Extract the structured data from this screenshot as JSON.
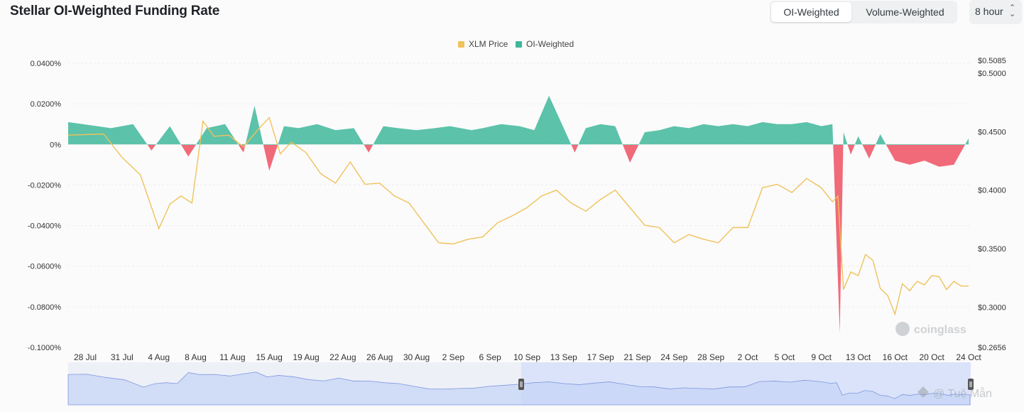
{
  "header": {
    "title": "Stellar OI-Weighted Funding Rate",
    "toggle": {
      "options": [
        "OI-Weighted",
        "Volume-Weighted"
      ],
      "selected": "OI-Weighted"
    },
    "interval": {
      "value": "8 hour"
    }
  },
  "watermark": {
    "brand": "coinglass",
    "credit": "@ Tuệ Mẫn"
  },
  "colors": {
    "price": "#f0c25a",
    "positive": "#3fb79b",
    "negative": "#ef5a6a",
    "navigator": "#c5d3f5"
  },
  "chart_data": {
    "type": "area",
    "legend": [
      "XLM Price",
      "OI-Weighted"
    ],
    "legend_position": "top-center",
    "x_ticks": [
      "28 Jul",
      "31 Jul",
      "4 Aug",
      "8 Aug",
      "11 Aug",
      "15 Aug",
      "19 Aug",
      "22 Aug",
      "26 Aug",
      "30 Aug",
      "2 Sep",
      "6 Sep",
      "10 Sep",
      "13 Sep",
      "17 Sep",
      "21 Sep",
      "24 Sep",
      "28 Sep",
      "2 Oct",
      "5 Oct",
      "9 Oct",
      "13 Oct",
      "16 Oct",
      "20 Oct",
      "24 Oct"
    ],
    "y_left_ticks": [
      "0.0400%",
      "0.0200%",
      "0%",
      "-0.0200%",
      "-0.0400%",
      "-0.0600%",
      "-0.0800%",
      "-0.1000%"
    ],
    "y_right_ticks": [
      "$0.5085",
      "$0.5000",
      "$0.4500",
      "$0.4000",
      "$0.3500",
      "$0.3000",
      "$0.2656"
    ],
    "ylim_left": [
      -0.1,
      0.04
    ],
    "ylim_right": [
      0.2656,
      0.5085
    ],
    "grid": true,
    "series": [
      {
        "name": "OI-Weighted",
        "axis": "left",
        "unit": "%",
        "x_index": [
          0,
          0.7,
          1.3,
          1.8,
          2.3,
          2.8,
          3.3,
          3.8,
          4.3,
          4.6,
          5.0,
          5.4,
          5.8,
          6.3,
          6.8,
          7.3,
          7.7,
          8.1,
          8.5,
          9.0,
          9.5,
          9.9,
          10.2,
          10.5,
          10.8,
          11.3,
          11.8,
          12.2,
          12.6,
          13.0,
          13.3,
          13.6,
          14.0,
          14.4,
          14.8,
          15.2,
          15.6,
          16.0,
          16.4,
          16.8,
          17.2,
          17.6,
          18.0,
          18.4,
          18.8,
          19.2,
          19.6,
          20.0,
          20.3,
          20.5,
          20.6,
          20.8,
          21.0,
          21.3,
          21.6,
          22.0,
          22.4,
          22.8,
          23.2,
          23.6,
          24.0
        ],
        "values": [
          0.011,
          0.008,
          0.01,
          -0.003,
          0.009,
          -0.006,
          0.008,
          0.01,
          -0.004,
          0.019,
          -0.013,
          0.009,
          0.008,
          0.01,
          0.007,
          0.008,
          -0.004,
          0.009,
          0.008,
          0.007,
          0.008,
          0.009,
          0.008,
          0.007,
          0.008,
          0.01,
          0.009,
          0.007,
          0.024,
          0.008,
          -0.004,
          0.008,
          0.01,
          0.009,
          -0.009,
          0.006,
          0.007,
          0.009,
          0.008,
          0.01,
          0.009,
          0.01,
          0.009,
          0.011,
          0.01,
          0.01,
          0.011,
          0.009,
          0.01,
          -0.093,
          0.006,
          -0.005,
          0.004,
          -0.007,
          0.005,
          -0.008,
          -0.01,
          -0.008,
          -0.011,
          -0.01,
          0.003
        ]
      },
      {
        "name": "XLM Price",
        "axis": "right",
        "unit": "$",
        "x_index": [
          0,
          0.5,
          1.0,
          1.5,
          2.0,
          2.3,
          2.6,
          2.9,
          3.2,
          3.5,
          3.9,
          4.3,
          4.7,
          5.0,
          5.3,
          5.6,
          6.0,
          6.4,
          6.8,
          7.2,
          7.6,
          8.0,
          8.4,
          8.8,
          9.2,
          9.6,
          10.0,
          10.4,
          10.8,
          11.2,
          11.6,
          12.0,
          12.4,
          12.8,
          13.2,
          13.6,
          14.0,
          14.4,
          14.8,
          15.2,
          15.6,
          16.0,
          16.4,
          16.8,
          17.2,
          17.6,
          18.0,
          18.4,
          18.8,
          19.2,
          19.6,
          20.0,
          20.3,
          20.45,
          20.6,
          20.8,
          21.0,
          21.2,
          21.4,
          21.6,
          21.8,
          22.0,
          22.2,
          22.4,
          22.6,
          22.8,
          23.0,
          23.2,
          23.4,
          23.6,
          23.8,
          24.0
        ],
        "values": [
          0.447,
          0.448,
          0.428,
          0.413,
          0.367,
          0.388,
          0.395,
          0.389,
          0.459,
          0.446,
          0.447,
          0.437,
          0.452,
          0.462,
          0.431,
          0.441,
          0.432,
          0.414,
          0.406,
          0.424,
          0.405,
          0.406,
          0.395,
          0.389,
          0.372,
          0.355,
          0.354,
          0.358,
          0.36,
          0.372,
          0.378,
          0.385,
          0.395,
          0.4,
          0.389,
          0.382,
          0.392,
          0.4,
          0.385,
          0.37,
          0.368,
          0.355,
          0.362,
          0.358,
          0.355,
          0.368,
          0.368,
          0.402,
          0.405,
          0.398,
          0.41,
          0.402,
          0.39,
          0.395,
          0.315,
          0.33,
          0.327,
          0.345,
          0.34,
          0.316,
          0.31,
          0.294,
          0.32,
          0.314,
          0.322,
          0.319,
          0.327,
          0.326,
          0.315,
          0.322,
          0.318,
          0.318
        ]
      }
    ]
  }
}
